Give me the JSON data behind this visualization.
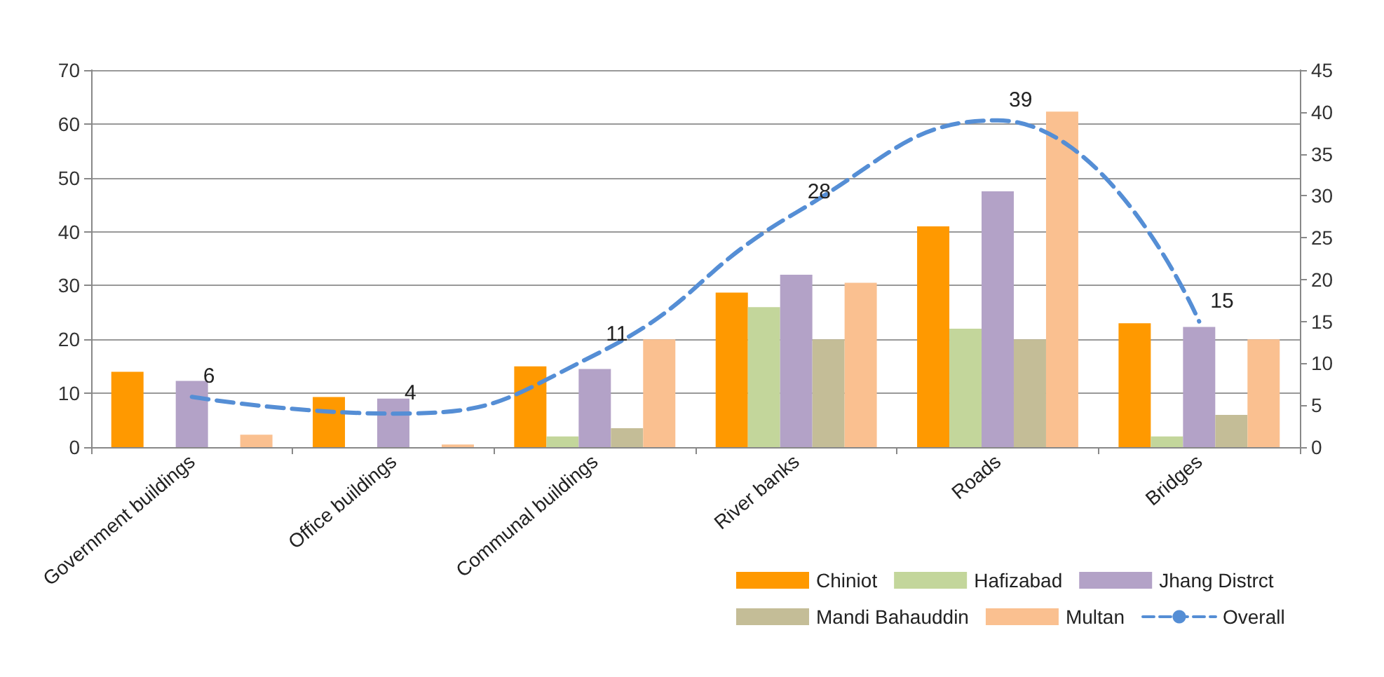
{
  "chart_data": {
    "type": "bar",
    "categories": [
      "Government buildings",
      "Office buildings",
      "Communal buildings",
      "River banks",
      "Roads",
      "Bridges"
    ],
    "series": [
      {
        "name": "Chiniot",
        "color": "#ff9900",
        "values": [
          14,
          9.3,
          15,
          28.7,
          41,
          23
        ]
      },
      {
        "name": "Hafizabad",
        "color": "#c3d69b",
        "values": [
          0,
          0,
          2,
          26,
          22,
          2
        ]
      },
      {
        "name": "Jhang Distrct",
        "color": "#b3a2c7",
        "values": [
          12.3,
          9,
          14.5,
          32,
          47.5,
          22.3
        ]
      },
      {
        "name": "Mandi Bahauddin",
        "color": "#c4bd97",
        "values": [
          0,
          0,
          3.5,
          20,
          20,
          6
        ]
      },
      {
        "name": "Multan",
        "color": "#fac090",
        "values": [
          2.3,
          0.5,
          20,
          30.5,
          62.3,
          20
        ]
      },
      {
        "name": "Overall",
        "type": "line",
        "axis": "y2",
        "color": "#558ed5",
        "line_style": "dashed",
        "marker": "none",
        "values": [
          6,
          4,
          11,
          28,
          39,
          15
        ],
        "value_labels": [
          "6",
          "4",
          "11",
          "28",
          "39",
          "15"
        ]
      }
    ],
    "ylim": [
      0,
      70
    ],
    "yticks": [
      0,
      10,
      20,
      30,
      40,
      50,
      60,
      70
    ],
    "y2lim": [
      0,
      45
    ],
    "y2ticks": [
      0,
      5,
      10,
      15,
      20,
      25,
      30,
      35,
      40,
      45
    ],
    "grid": "y",
    "legend": "bottom right"
  }
}
